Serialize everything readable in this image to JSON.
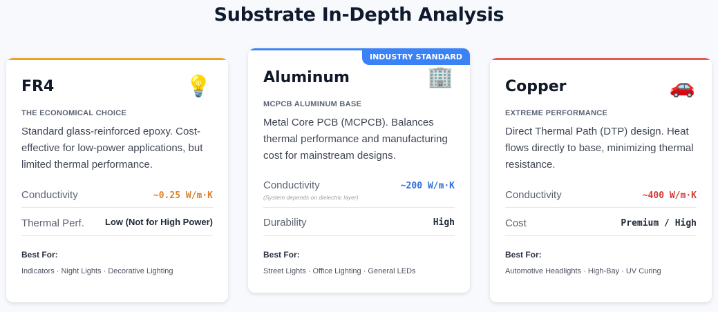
{
  "title": "Substrate In-Depth Analysis",
  "cards": [
    {
      "name": "FR4",
      "icon": "💡",
      "icon_name": "light-bulb-icon",
      "accent": "#e9a426",
      "subtitle": "THE ECONOMICAL CHOICE",
      "description": "Standard glass-reinforced epoxy. Cost-effective for low-power applications, but limited thermal performance.",
      "rows": [
        {
          "label": "Conductivity",
          "value": "~0.25 W/m·K",
          "color": "#d9822b"
        },
        {
          "label": "Thermal Perf.",
          "value": "Low (Not for High Power)",
          "color": "#1f2937"
        }
      ],
      "best_for_label": "Best For:",
      "best_for": "Indicators · Night Lights · Decorative Lighting"
    },
    {
      "name": "Aluminum",
      "badge": "INDUSTRY STANDARD",
      "icon": "🏢",
      "icon_name": "office-building-icon",
      "accent": "#3b82f6",
      "subtitle": "MCPCB ALUMINUM BASE",
      "description": "Metal Core PCB (MCPCB). Balances thermal performance and manufacturing cost for mainstream designs.",
      "rows": [
        {
          "label": "Conductivity",
          "value": "~200 W/m·K",
          "note": "(System depends on dielectric layer)",
          "color": "#2f6fdb"
        },
        {
          "label": "Durability",
          "value": "High",
          "color": "#1f2937"
        }
      ],
      "best_for_label": "Best For:",
      "best_for": "Street Lights · Office Lighting · General LEDs"
    },
    {
      "name": "Copper",
      "icon": "🚗",
      "icon_name": "car-icon",
      "accent": "#e05a52",
      "subtitle": "EXTREME PERFORMANCE",
      "description": "Direct Thermal Path (DTP) design. Heat flows directly to base, minimizing thermal resistance.",
      "rows": [
        {
          "label": "Conductivity",
          "value": "~400 W/m·K",
          "color": "#d33a35"
        },
        {
          "label": "Cost",
          "value": "Premium / High",
          "color": "#1f2937"
        }
      ],
      "best_for_label": "Best For:",
      "best_for": "Automotive Headlights · High-Bay · UV Curing"
    }
  ]
}
